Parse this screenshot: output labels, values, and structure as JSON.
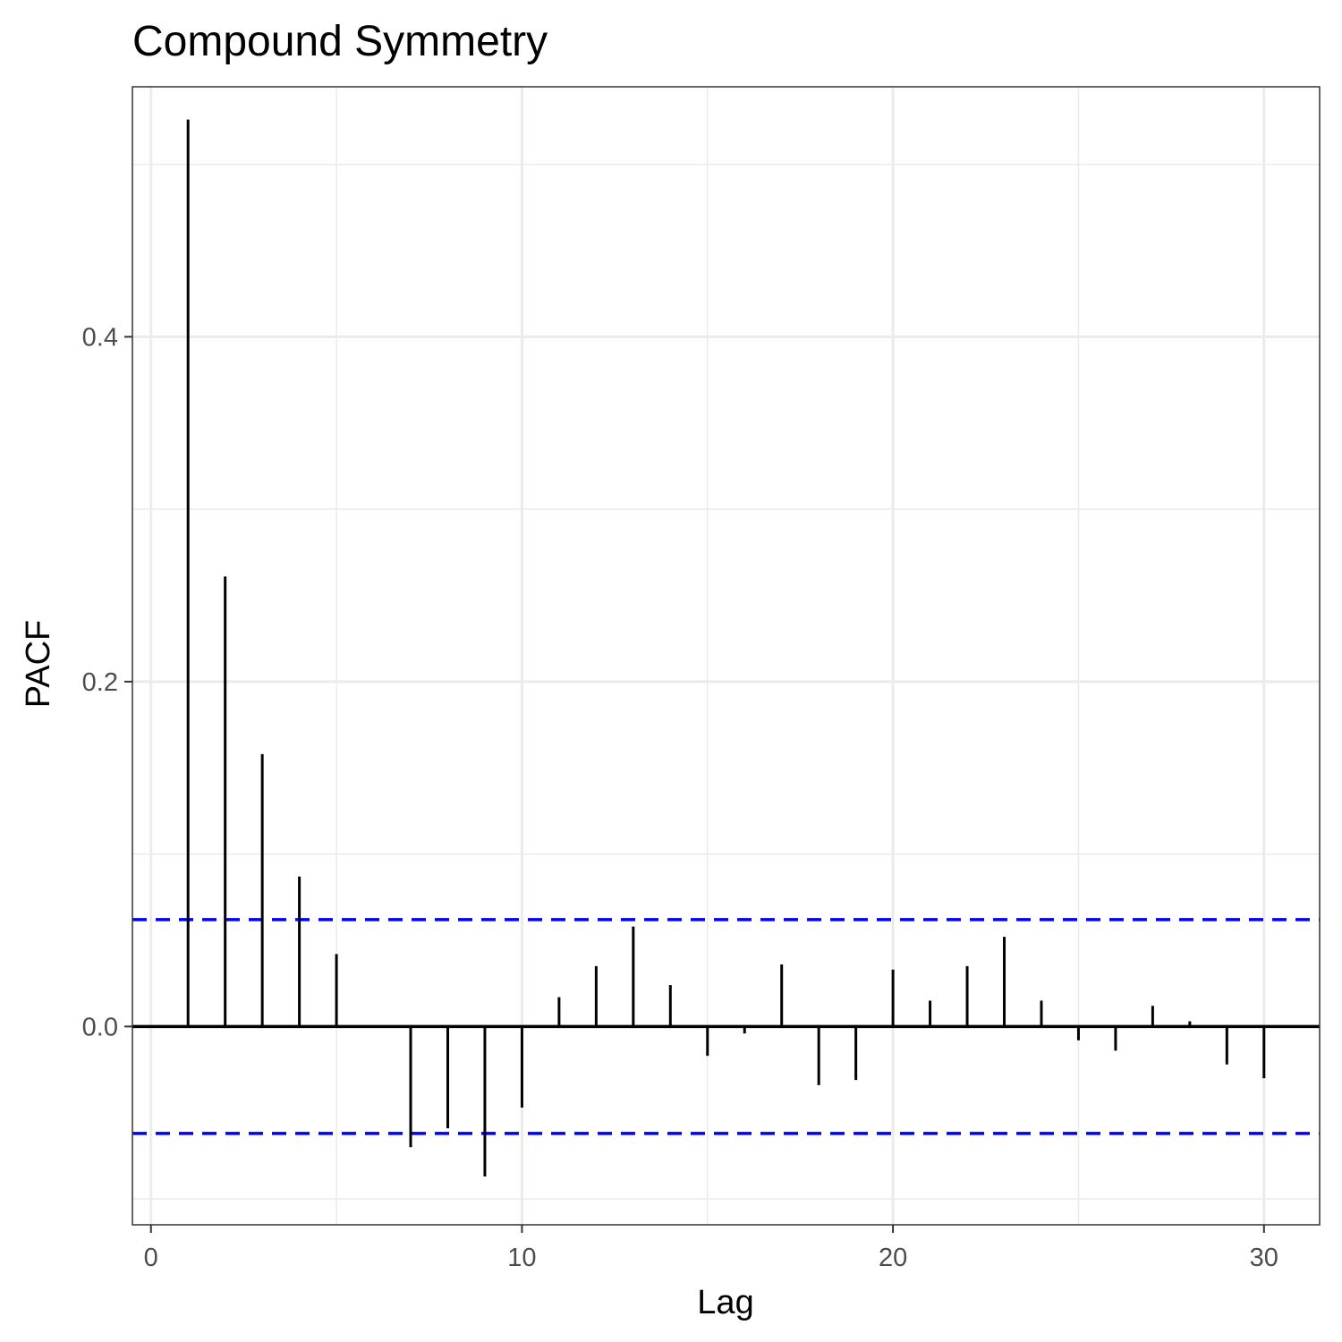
{
  "chart_data": {
    "type": "bar",
    "title": "Compound Symmetry",
    "xlabel": "Lag",
    "ylabel": "PACF",
    "xlim": [
      -0.5,
      31.5
    ],
    "ylim": [
      -0.115,
      0.545
    ],
    "x_ticks": [
      {
        "value": 0,
        "label": "0"
      },
      {
        "value": 10,
        "label": "10"
      },
      {
        "value": 20,
        "label": "20"
      },
      {
        "value": 30,
        "label": "30"
      }
    ],
    "y_ticks": [
      {
        "value": 0.0,
        "label": "0.0"
      },
      {
        "value": 0.2,
        "label": "0.2"
      },
      {
        "value": 0.4,
        "label": "0.4"
      }
    ],
    "x_minor_ticks": [
      5,
      15,
      25
    ],
    "y_minor_ticks": [
      -0.1,
      0.1,
      0.3,
      0.5
    ],
    "grid": true,
    "confidence_bounds": [
      0.062,
      -0.062
    ],
    "colors": {
      "bars": "#000000",
      "bounds": "#0000ff",
      "grid": "#ebebeb",
      "panel_border": "#333333"
    },
    "lags": [
      1,
      2,
      3,
      4,
      5,
      6,
      7,
      8,
      9,
      10,
      11,
      12,
      13,
      14,
      15,
      16,
      17,
      18,
      19,
      20,
      21,
      22,
      23,
      24,
      25,
      26,
      27,
      28,
      29,
      30
    ],
    "values": [
      0.526,
      0.261,
      0.158,
      0.087,
      0.042,
      0.0,
      -0.07,
      -0.059,
      -0.087,
      -0.047,
      0.017,
      0.035,
      0.058,
      0.024,
      -0.017,
      -0.004,
      0.036,
      -0.034,
      -0.031,
      0.033,
      0.015,
      0.035,
      0.052,
      0.015,
      -0.008,
      -0.014,
      0.012,
      0.003,
      -0.022,
      -0.03
    ]
  }
}
